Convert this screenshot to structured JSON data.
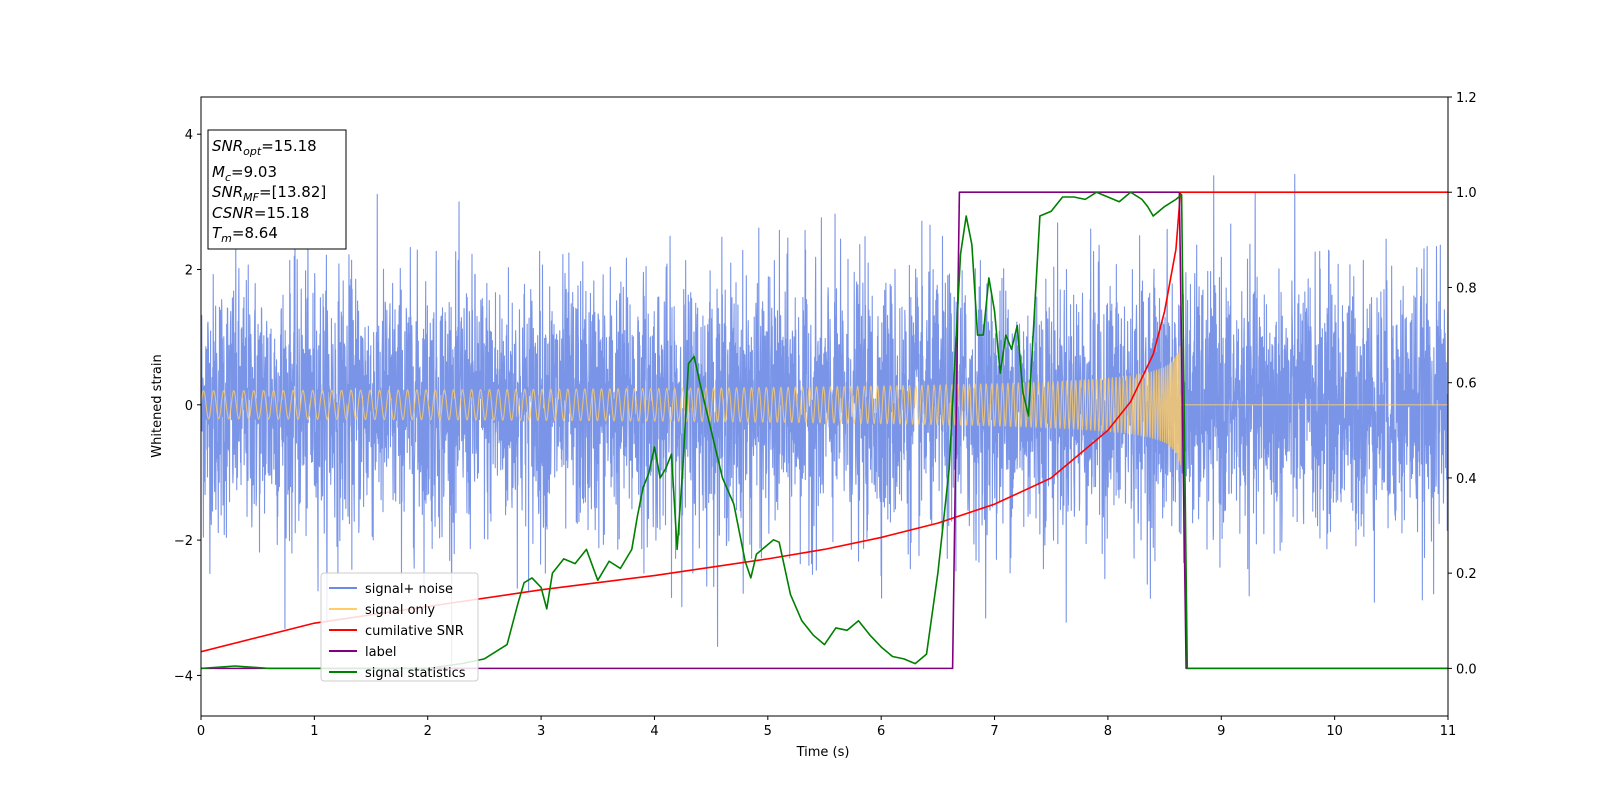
{
  "chart_data": {
    "type": "line",
    "xlabel": "Time (s)",
    "ylabel": "Whitened strain",
    "xlim": [
      0,
      11
    ],
    "ylim": [
      -4.6,
      4.55
    ],
    "y2lim": [
      -0.1,
      1.2
    ],
    "x_ticks": [
      "0",
      "1",
      "2",
      "3",
      "4",
      "5",
      "6",
      "7",
      "8",
      "9",
      "10",
      "11"
    ],
    "y_ticks": [
      "−4",
      "−2",
      "0",
      "2",
      "4"
    ],
    "y2_ticks": [
      "0.0",
      "0.2",
      "0.4",
      "0.6",
      "0.8",
      "1.0",
      "1.2"
    ],
    "info_box": {
      "snr_opt": {
        "sym": "SNR",
        "sub": "opt",
        "value": "=15.18"
      },
      "mc": {
        "sym": "M",
        "sub": "c",
        "value": "=9.03"
      },
      "snr_mf": {
        "sym": "SNR",
        "sub": "MF",
        "value": "=[13.82]"
      },
      "csnr": {
        "sym": "CSNR",
        "value": "=15.18"
      },
      "tm": {
        "sym": "T",
        "sub": "m",
        "value": "=8.64"
      }
    },
    "legend": {
      "position": "lower-left",
      "entries": [
        {
          "label": "signal+ noise",
          "color": "#6b8ae6"
        },
        {
          "label": "signal only",
          "color": "#ffcc66"
        },
        {
          "label": "cumilative SNR",
          "color": "#ff0000"
        },
        {
          "label": "label",
          "color": "#800080"
        },
        {
          "label": "signal statistics",
          "color": "#008000"
        }
      ]
    },
    "series": [
      {
        "name": "signal+ noise",
        "axis": "left",
        "kind": "noise",
        "color": "#6b8ae6",
        "typical_range": [
          -2.0,
          2.3
        ],
        "min": -4.15,
        "max": 4.15
      },
      {
        "name": "signal only",
        "axis": "left",
        "kind": "chirp",
        "color": "#ffcc66",
        "end_time": 8.64,
        "final_amplitude": 1.05
      },
      {
        "name": "cumilative SNR",
        "axis": "right",
        "color": "#ff0000",
        "x": [
          0,
          1,
          2,
          3,
          4,
          5,
          5.5,
          6,
          6.5,
          7,
          7.5,
          8,
          8.2,
          8.4,
          8.5,
          8.6,
          8.64,
          11
        ],
        "y": [
          0.035,
          0.095,
          0.13,
          0.165,
          0.195,
          0.23,
          0.25,
          0.275,
          0.305,
          0.345,
          0.4,
          0.5,
          0.56,
          0.66,
          0.75,
          0.88,
          1.0,
          1.0
        ]
      },
      {
        "name": "label",
        "axis": "right",
        "color": "#800080",
        "x": [
          0,
          6.63,
          6.69,
          8.63,
          8.69,
          11
        ],
        "y": [
          0,
          0,
          1,
          1,
          0,
          0
        ]
      },
      {
        "name": "signal statistics",
        "axis": "right",
        "color": "#008000",
        "x": [
          0,
          0.3,
          0.6,
          1,
          1.5,
          2,
          2.3,
          2.5,
          2.6,
          2.7,
          2.8,
          2.85,
          2.92,
          3.0,
          3.05,
          3.1,
          3.2,
          3.3,
          3.4,
          3.5,
          3.6,
          3.7,
          3.8,
          3.85,
          3.9,
          3.95,
          4.0,
          4.05,
          4.1,
          4.15,
          4.2,
          4.25,
          4.3,
          4.35,
          4.4,
          4.5,
          4.6,
          4.7,
          4.8,
          4.85,
          4.9,
          4.95,
          5.0,
          5.05,
          5.1,
          5.2,
          5.3,
          5.4,
          5.5,
          5.6,
          5.7,
          5.8,
          5.9,
          6.0,
          6.1,
          6.2,
          6.3,
          6.4,
          6.5,
          6.6,
          6.7,
          6.75,
          6.8,
          6.85,
          6.9,
          6.95,
          7.0,
          7.05,
          7.1,
          7.15,
          7.2,
          7.25,
          7.3,
          7.4,
          7.5,
          7.6,
          7.7,
          7.8,
          7.9,
          8.0,
          8.1,
          8.2,
          8.3,
          8.35,
          8.4,
          8.5,
          8.6,
          8.65,
          8.7,
          11
        ],
        "y": [
          0.0,
          0.005,
          0.0,
          0.0,
          0.0,
          0.0,
          0.01,
          0.02,
          0.035,
          0.05,
          0.14,
          0.18,
          0.19,
          0.17,
          0.125,
          0.2,
          0.23,
          0.22,
          0.25,
          0.185,
          0.225,
          0.21,
          0.25,
          0.32,
          0.38,
          0.41,
          0.465,
          0.4,
          0.42,
          0.45,
          0.25,
          0.42,
          0.64,
          0.655,
          0.6,
          0.5,
          0.4,
          0.345,
          0.225,
          0.19,
          0.24,
          0.25,
          0.26,
          0.27,
          0.265,
          0.155,
          0.1,
          0.07,
          0.05,
          0.085,
          0.08,
          0.1,
          0.07,
          0.045,
          0.025,
          0.02,
          0.01,
          0.03,
          0.2,
          0.42,
          0.87,
          0.95,
          0.89,
          0.7,
          0.7,
          0.82,
          0.75,
          0.62,
          0.7,
          0.67,
          0.72,
          0.58,
          0.53,
          0.95,
          0.96,
          0.99,
          0.99,
          0.985,
          1.0,
          0.99,
          0.98,
          1.0,
          0.985,
          0.97,
          0.95,
          0.97,
          0.985,
          0.995,
          0.0,
          0.0
        ]
      }
    ]
  }
}
